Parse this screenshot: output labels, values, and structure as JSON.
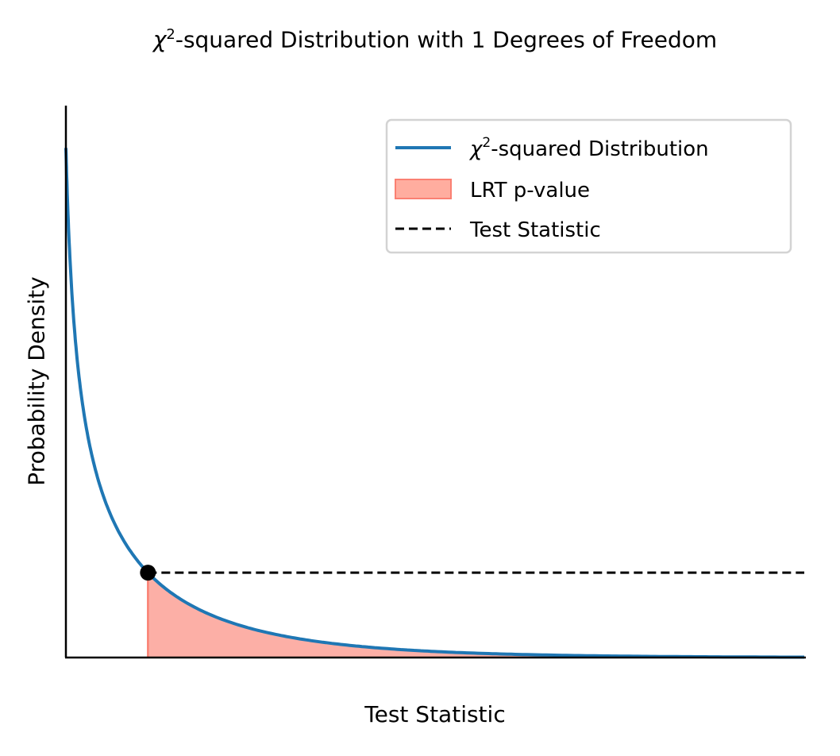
{
  "chart_data": {
    "type": "line",
    "title_greek": "χ",
    "title_sup": "2",
    "title_rest": "-squared Distribution with 1 Degrees of Freedom",
    "xlabel": "Test Statistic",
    "ylabel": "Probability Density",
    "xlim": [
      0.1,
      10
    ],
    "ylim": [
      0,
      1.3
    ],
    "grid": false,
    "legend_position": "top-right",
    "series": [
      {
        "name_greek": "χ",
        "name_sup": "2",
        "name_rest": "-squared Distribution",
        "type": "line",
        "color": "#1f77b4",
        "x": [
          0.1,
          0.2,
          0.3,
          0.4,
          0.5,
          0.6,
          0.8,
          1.0,
          1.2,
          1.5,
          2.0,
          2.5,
          3.0,
          3.5,
          4.0,
          5.0,
          6.0,
          7.0,
          8.0,
          9.0,
          10.0
        ],
        "y": [
          1.2,
          0.807,
          0.627,
          0.516,
          0.439,
          0.381,
          0.298,
          0.242,
          0.2,
          0.154,
          0.104,
          0.072,
          0.051,
          0.037,
          0.027,
          0.015,
          0.008,
          0.005,
          0.003,
          0.002,
          0.001
        ]
      },
      {
        "name": "LRT p-value",
        "type": "area",
        "color": "#fa8072",
        "x_from": 1.2,
        "x_to": 10
      },
      {
        "name": "Test Statistic",
        "type": "dashed-line",
        "color": "#000000",
        "x": 1.2,
        "y": 0.2
      }
    ]
  }
}
